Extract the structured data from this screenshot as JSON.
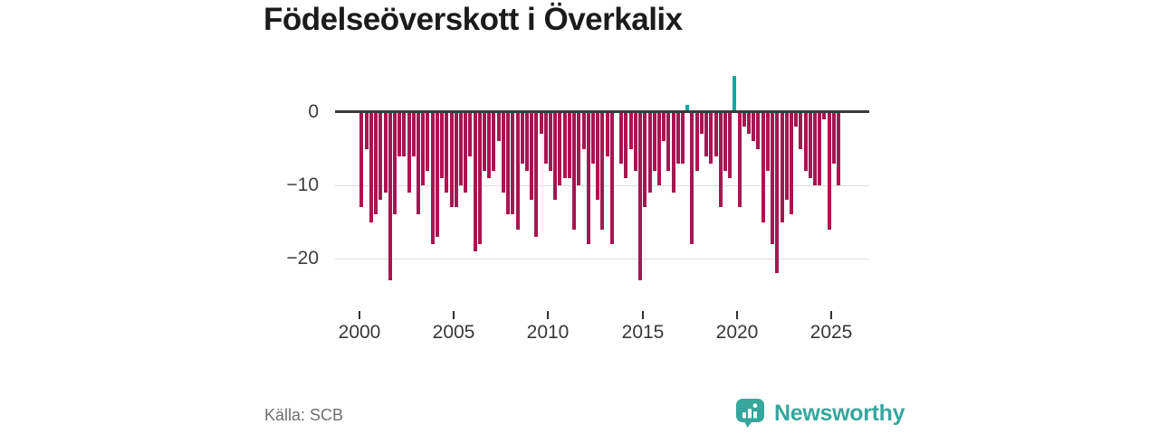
{
  "title": "Födelseöverskott i Överkalix",
  "source": "Källa: SCB",
  "brand": {
    "name": "Newsworthy"
  },
  "colors": {
    "negative_bar": "#a81550",
    "positive_bar": "#1aa3a0",
    "axis_line": "#3a3a3a",
    "gridline": "#dcdcdc",
    "title_text": "#1b1b1b",
    "tick_text": "#3d3d3d",
    "source_text": "#6f6f6f",
    "brand_teal": "#35a79d"
  },
  "chart_data": {
    "type": "bar",
    "title": "Födelseöverskott i Överkalix",
    "frequency": "quarterly",
    "x_start": "2000-Q1",
    "x_end": "2025-Q2",
    "values": [
      -13,
      -5,
      -15,
      -14,
      -12,
      -11,
      -23,
      -14,
      -6,
      -6,
      -11,
      -6,
      -14,
      -10,
      -8,
      -18,
      -17,
      -9,
      -11,
      -13,
      -13,
      -10,
      -11,
      -6,
      -19,
      -18,
      -8,
      -9,
      -8,
      -4,
      -11,
      -14,
      -14,
      -16,
      -7,
      -8,
      -12,
      -17,
      -3,
      -7,
      -8,
      -12,
      -10,
      -9,
      -9,
      -16,
      -10,
      -5,
      -18,
      -7,
      -12,
      -16,
      -6,
      -18,
      0,
      -7,
      -9,
      -5,
      -8,
      -23,
      -13,
      -11,
      -8,
      -10,
      -4,
      -8,
      -11,
      -7,
      -7,
      1,
      -18,
      -8,
      -3,
      -6,
      -7,
      -6,
      -13,
      -8,
      -9,
      5,
      -13,
      -2,
      -3,
      -4,
      -5,
      -15,
      -8,
      -18,
      -22,
      -15,
      -12,
      -14,
      -2,
      -5,
      -8,
      -9,
      -10,
      -10,
      -1,
      -16,
      -7,
      -10
    ],
    "positive_color": "#1aa3a0",
    "negative_color": "#a81550",
    "y_ticks": [
      0,
      -10,
      -20
    ],
    "y_tick_labels": [
      "0",
      "−10",
      "−20"
    ],
    "x_tick_years": [
      2000,
      2005,
      2010,
      2015,
      2020,
      2025
    ],
    "x_tick_labels": [
      "2000",
      "2005",
      "2010",
      "2015",
      "2020",
      "2025"
    ],
    "ylim": [
      -25,
      6
    ],
    "grid": "horizontal",
    "legend": "none"
  }
}
